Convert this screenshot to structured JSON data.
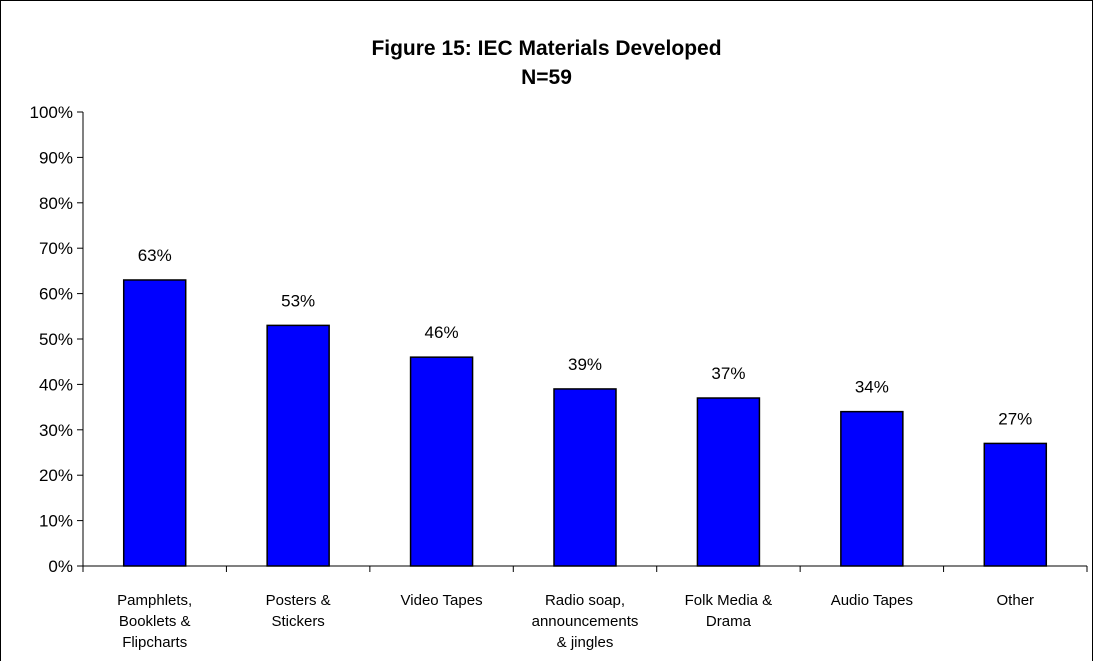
{
  "chart_data": {
    "type": "bar",
    "title": "Figure 15:  IEC Materials Developed",
    "subtitle": "N=59",
    "categories": [
      [
        "Pamphlets,",
        "Booklets &",
        "Flipcharts"
      ],
      [
        "Posters &",
        "Stickers"
      ],
      [
        "Video Tapes"
      ],
      [
        "Radio soap,",
        "announcements",
        "& jingles"
      ],
      [
        "Folk Media &",
        "Drama"
      ],
      [
        "Audio Tapes"
      ],
      [
        "Other"
      ]
    ],
    "values": [
      63,
      53,
      46,
      39,
      37,
      34,
      27
    ],
    "value_labels": [
      "63%",
      "53%",
      "46%",
      "39%",
      "37%",
      "34%",
      "27%"
    ],
    "yticks": [
      "0%",
      "10%",
      "20%",
      "30%",
      "40%",
      "50%",
      "60%",
      "70%",
      "80%",
      "90%",
      "100%"
    ],
    "ylim": [
      0,
      100
    ],
    "bar_color": "#0000ff",
    "grid": false,
    "legend": "none"
  }
}
